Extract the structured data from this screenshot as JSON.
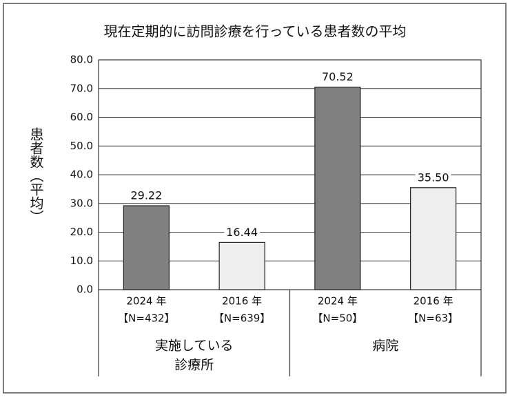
{
  "chart_data": {
    "type": "bar",
    "title": "現在定期的に訪問診療を行っている患者数の平均",
    "y_label": "患者数（平均）",
    "categories": [
      "2024 年",
      "2016 年",
      "2024 年",
      "2016 年"
    ],
    "category_notes": [
      "【N=432】",
      "【N=639】",
      "【N=50】",
      "【N=63】"
    ],
    "groups": [
      [
        "実施している",
        "診療所"
      ],
      [
        "病院"
      ]
    ],
    "values": [
      29.22,
      16.44,
      70.52,
      35.5
    ],
    "value_labels": [
      "29.22",
      "16.44",
      "70.52",
      "35.50"
    ],
    "colors": [
      "#808080",
      "#eeeeee",
      "#808080",
      "#eeeeee"
    ],
    "ylim": [
      0,
      80
    ],
    "yticks": [
      {
        "value": 0,
        "label": "0.0"
      },
      {
        "value": 10,
        "label": "10.0"
      },
      {
        "value": 20,
        "label": "20.0"
      },
      {
        "value": 30,
        "label": "30.0"
      },
      {
        "value": 40,
        "label": "40.0"
      },
      {
        "value": 50,
        "label": "50.0"
      },
      {
        "value": 60,
        "label": "60.0"
      },
      {
        "value": 70,
        "label": "70.0"
      },
      {
        "value": 80,
        "label": "80.0"
      }
    ],
    "grid": true
  }
}
